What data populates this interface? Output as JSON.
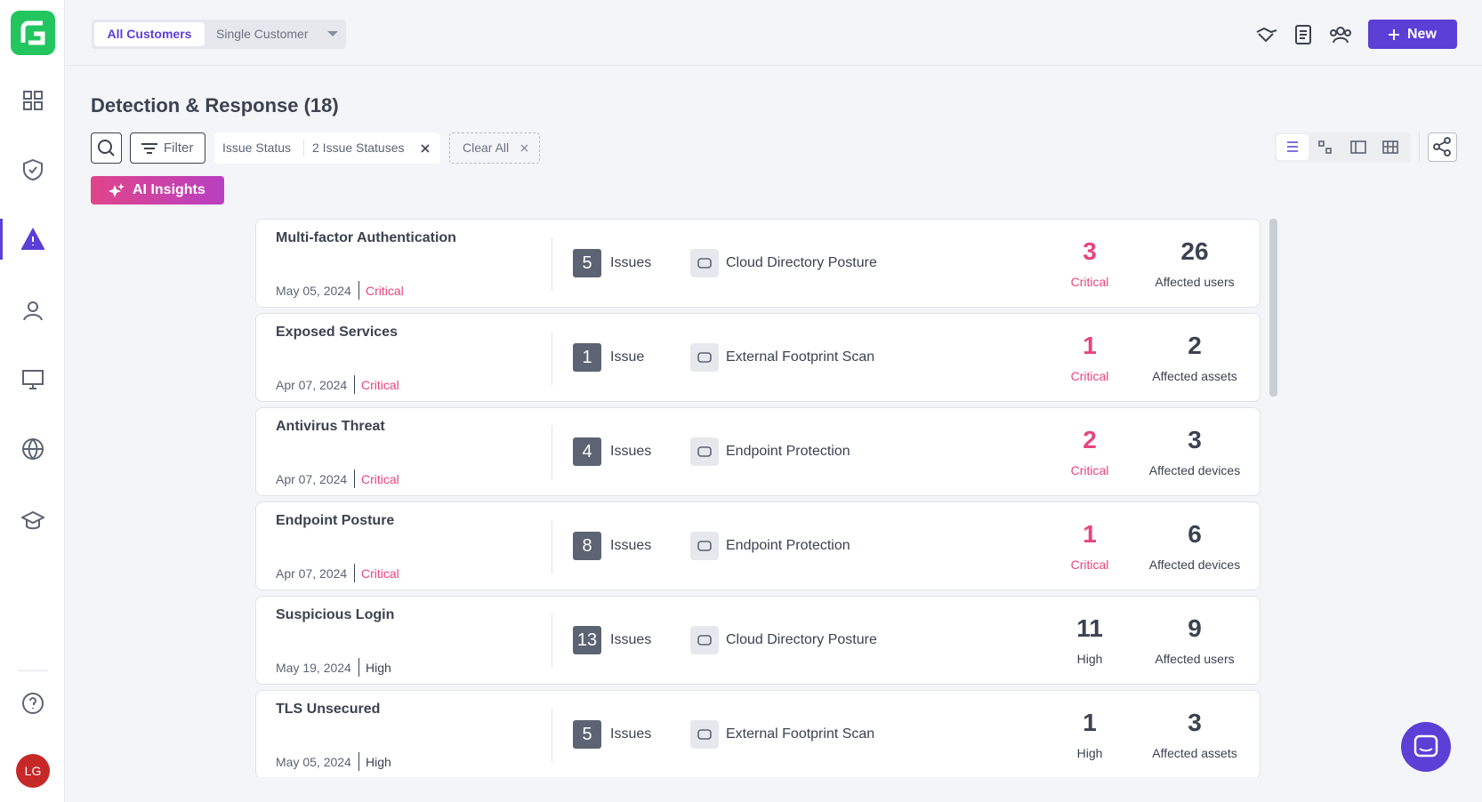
{
  "header": {
    "tabs": [
      "All Customers",
      "Single Customer"
    ],
    "new_button": "New"
  },
  "page": {
    "title": "Detection & Response (18)",
    "filter": "Filter",
    "chip_key": "Issue Status",
    "chip_value": "2 Issue Statuses",
    "clear": "Clear All",
    "ai": "AI Insights"
  },
  "items": [
    {
      "title": "Multi-factor Authentication",
      "date": "May 05, 2024",
      "severity": "Critical",
      "color": "#e8457a",
      "issues": 5,
      "issues_label": "Issues",
      "source": "Cloud Directory Posture",
      "stat": 3,
      "stat_label": "Critical",
      "affected": 26,
      "affected_label": "Affected users"
    },
    {
      "title": "Exposed Services",
      "date": "Apr 07, 2024",
      "severity": "Critical",
      "color": "#e8457a",
      "issues": 1,
      "issues_label": "Issue",
      "source": "External Footprint Scan",
      "stat": 1,
      "stat_label": "Critical",
      "affected": 2,
      "affected_label": "Affected assets"
    },
    {
      "title": "Antivirus Threat",
      "date": "Apr 07, 2024",
      "severity": "Critical",
      "color": "#e8457a",
      "issues": 4,
      "issues_label": "Issues",
      "source": "Endpoint Protection",
      "stat": 2,
      "stat_label": "Critical",
      "affected": 3,
      "affected_label": "Affected devices"
    },
    {
      "title": "Endpoint Posture",
      "date": "Apr 07, 2024",
      "severity": "Critical",
      "color": "#e8457a",
      "issues": 8,
      "issues_label": "Issues",
      "source": "Endpoint Protection",
      "stat": 1,
      "stat_label": "Critical",
      "affected": 6,
      "affected_label": "Affected devices"
    },
    {
      "title": "Suspicious Login",
      "date": "May 19, 2024",
      "severity": "High",
      "color": "#3b4250",
      "issues": 13,
      "issues_label": "Issues",
      "source": "Cloud Directory Posture",
      "stat": 11,
      "stat_label": "High",
      "affected": 9,
      "affected_label": "Affected users"
    },
    {
      "title": "TLS Unsecured",
      "date": "May 05, 2024",
      "severity": "High",
      "color": "#3b4250",
      "issues": 5,
      "issues_label": "Issues",
      "source": "External Footprint Scan",
      "stat": 1,
      "stat_label": "High",
      "affected": 3,
      "affected_label": "Affected assets"
    }
  ],
  "user": {
    "initials": "LG"
  }
}
